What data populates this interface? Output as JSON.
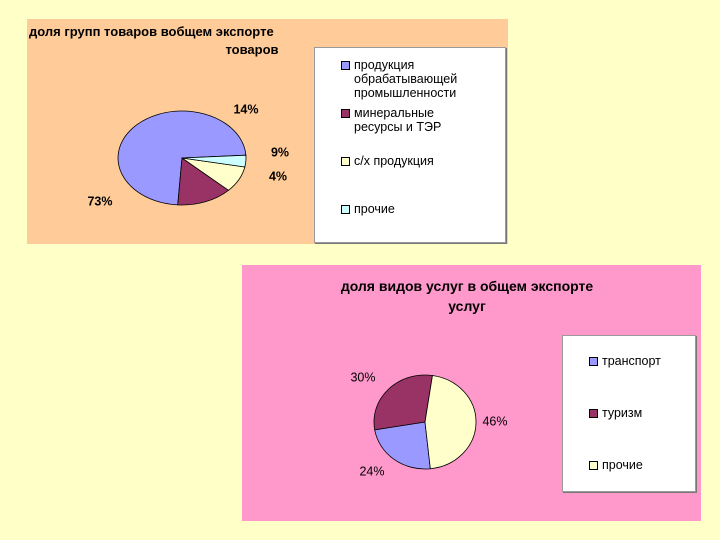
{
  "chart_data": [
    {
      "type": "pie",
      "title_lines": [
        "доля групп товаров вобщем экспорте",
        "товаров"
      ],
      "series": [
        {
          "name": "продукция обрабатывающей промышленности",
          "value": 73,
          "label": "73%",
          "color": "#9999ff"
        },
        {
          "name": "минеральные ресурсы и ТЭР",
          "value": 14,
          "label": "14%",
          "color": "#993366"
        },
        {
          "name": "с/х продукция",
          "value": 9,
          "label": "9%",
          "color": "#ffffcc"
        },
        {
          "name": "прочие",
          "value": 4,
          "label": "4%",
          "color": "#ccffff"
        }
      ],
      "legend_lines": [
        [
          "продукция",
          "обрабатывающей",
          "промышленности"
        ],
        [
          "минеральные",
          "ресурсы и ТЭР"
        ],
        [
          "с/х продукция"
        ],
        [
          "прочие"
        ]
      ],
      "legend_position": "right",
      "background": "#ffcc99"
    },
    {
      "type": "pie",
      "title_lines": [
        "доля видов услуг в общем экспорте",
        "услуг"
      ],
      "series": [
        {
          "name": "транспорт",
          "value": 24,
          "label": "24%",
          "color": "#9999ff"
        },
        {
          "name": "туризм",
          "value": 30,
          "label": "30%",
          "color": "#993366"
        },
        {
          "name": "прочие",
          "value": 46,
          "label": "46%",
          "color": "#ffffcc"
        }
      ],
      "legend_lines": [
        [
          "транспорт"
        ],
        [
          "туризм"
        ],
        [
          "прочие"
        ]
      ],
      "legend_position": "right",
      "background": "#ff99cc"
    }
  ]
}
